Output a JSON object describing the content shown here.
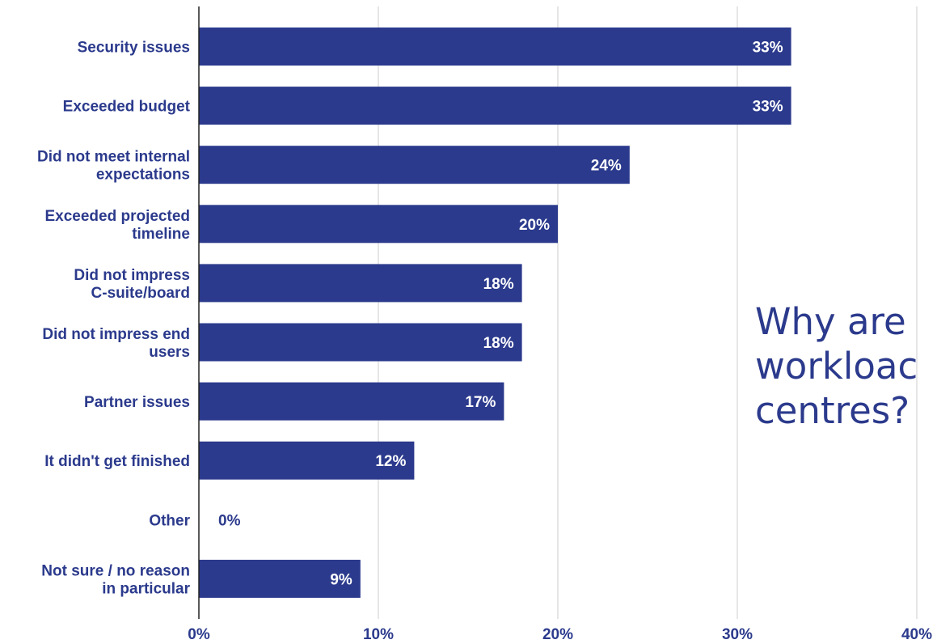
{
  "chart_data": {
    "type": "bar",
    "orientation": "horizontal",
    "categories": [
      [
        "Security issues"
      ],
      [
        "Exceeded budget"
      ],
      [
        "Did not meet internal",
        "expectations"
      ],
      [
        "Exceeded projected",
        "timeline"
      ],
      [
        "Did not impress",
        "C-suite/board"
      ],
      [
        "Did not impress end",
        "users"
      ],
      [
        "Partner issues"
      ],
      [
        "It didn't get finished"
      ],
      [
        "Other"
      ],
      [
        "Not sure / no reason",
        "in particular"
      ]
    ],
    "values": [
      33,
      33,
      24,
      20,
      18,
      18,
      17,
      12,
      0,
      9
    ],
    "value_labels": [
      "33%",
      "33%",
      "24%",
      "20%",
      "18%",
      "18%",
      "17%",
      "12%",
      "0%",
      "9%"
    ],
    "xlim": [
      0,
      40
    ],
    "xticks": [
      0,
      10,
      20,
      30,
      40
    ],
    "xtick_labels": [
      "0%",
      "10%",
      "20%",
      "30%",
      "40%"
    ],
    "grid": "vertical",
    "colors": {
      "bar": "#2b3a8c",
      "label": "#2b3a8c",
      "value_inside": "#ffffff",
      "grid": "#cccccc"
    }
  },
  "overlay": {
    "lines": [
      "Why are",
      "workloac",
      "centres?"
    ]
  }
}
